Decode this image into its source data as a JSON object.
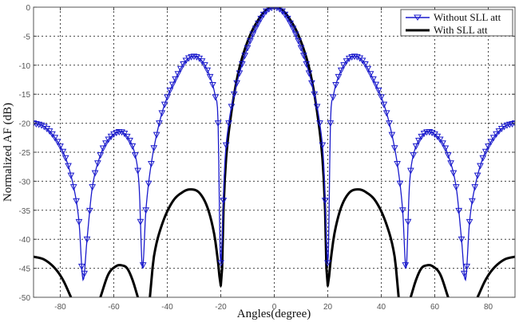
{
  "chart_data": {
    "type": "line",
    "title": "",
    "xlabel": "Angles(degree)",
    "ylabel": "Normalized AF (dB)",
    "xlim": [
      -90,
      90
    ],
    "ylim": [
      -50,
      0
    ],
    "xticks": [
      -80,
      -60,
      -40,
      -20,
      0,
      20,
      40,
      60,
      80
    ],
    "yticks": [
      0,
      -5,
      -10,
      -15,
      -20,
      -25,
      -30,
      -35,
      -40,
      -45,
      -50
    ],
    "grid": true,
    "legend_position": "upper right",
    "series": [
      {
        "name": "Without SLL att",
        "color": "#1a1acc",
        "marker": "triangle-down",
        "keypoints": [
          [
            -90,
            -20
          ],
          [
            -86,
            -20.6
          ],
          [
            -82,
            -22.5
          ],
          [
            -78,
            -26
          ],
          [
            -75,
            -31
          ],
          [
            -73,
            -37
          ],
          [
            -71.5,
            -47
          ],
          [
            -70,
            -40
          ],
          [
            -68,
            -31
          ],
          [
            -65,
            -25.5
          ],
          [
            -62,
            -22.8
          ],
          [
            -58,
            -21.5
          ],
          [
            -55,
            -22.3
          ],
          [
            -52,
            -25.5
          ],
          [
            -50.5,
            -31
          ],
          [
            -49.3,
            -45
          ],
          [
            -48,
            -35
          ],
          [
            -46,
            -27
          ],
          [
            -43,
            -20
          ],
          [
            -40,
            -15.5
          ],
          [
            -36,
            -11.5
          ],
          [
            -33,
            -9.2
          ],
          [
            -30,
            -8.5
          ],
          [
            -27,
            -9.3
          ],
          [
            -24,
            -12
          ],
          [
            -22,
            -15.5
          ],
          [
            -21,
            -20
          ],
          [
            -20.2,
            -43
          ],
          [
            -19.5,
            -40
          ],
          [
            -18.5,
            -27
          ],
          [
            -17,
            -20
          ],
          [
            -15,
            -15
          ],
          [
            -12,
            -9.8
          ],
          [
            -9,
            -5.8
          ],
          [
            -6,
            -2.8
          ],
          [
            -3,
            -0.7
          ],
          [
            0,
            0
          ],
          [
            3,
            -0.7
          ],
          [
            6,
            -2.8
          ],
          [
            9,
            -5.8
          ],
          [
            12,
            -9.8
          ],
          [
            15,
            -15
          ],
          [
            17,
            -20
          ],
          [
            18.5,
            -27
          ],
          [
            19.5,
            -40
          ],
          [
            20.2,
            -43
          ],
          [
            21,
            -20
          ],
          [
            22,
            -15.5
          ],
          [
            24,
            -12
          ],
          [
            27,
            -9.3
          ],
          [
            30,
            -8.5
          ],
          [
            33,
            -9.2
          ],
          [
            36,
            -11.5
          ],
          [
            40,
            -15.5
          ],
          [
            43,
            -20
          ],
          [
            46,
            -27
          ],
          [
            48,
            -35
          ],
          [
            49.3,
            -45
          ],
          [
            50.5,
            -31
          ],
          [
            52,
            -25.5
          ],
          [
            55,
            -22.3
          ],
          [
            58,
            -21.5
          ],
          [
            62,
            -22.8
          ],
          [
            65,
            -25.5
          ],
          [
            68,
            -31
          ],
          [
            70,
            -40
          ],
          [
            71.5,
            -47
          ],
          [
            73,
            -37
          ],
          [
            75,
            -31
          ],
          [
            78,
            -26
          ],
          [
            82,
            -22.5
          ],
          [
            86,
            -20.6
          ],
          [
            90,
            -20
          ]
        ]
      },
      {
        "name": "With SLL att",
        "color": "#000000",
        "marker": "none",
        "keypoints": [
          [
            -90,
            -43
          ],
          [
            -86,
            -43.5
          ],
          [
            -82,
            -45
          ],
          [
            -79,
            -47
          ],
          [
            -76,
            -50
          ],
          [
            -65,
            -50
          ],
          [
            -62,
            -46
          ],
          [
            -59,
            -44.6
          ],
          [
            -57,
            -44.5
          ],
          [
            -55,
            -45
          ],
          [
            -53,
            -47
          ],
          [
            -51,
            -50
          ],
          [
            -46.5,
            -50
          ],
          [
            -45,
            -43
          ],
          [
            -42,
            -37.5
          ],
          [
            -38,
            -33.5
          ],
          [
            -34,
            -31.8
          ],
          [
            -31,
            -31.4
          ],
          [
            -28,
            -32
          ],
          [
            -25,
            -34.5
          ],
          [
            -22.5,
            -39
          ],
          [
            -21,
            -44
          ],
          [
            -20,
            -48
          ],
          [
            -19.5,
            -45
          ],
          [
            -19,
            -35
          ],
          [
            -18,
            -26
          ],
          [
            -16,
            -18
          ],
          [
            -14,
            -12.5
          ],
          [
            -12,
            -8.7
          ],
          [
            -9,
            -4.8
          ],
          [
            -6,
            -2.2
          ],
          [
            -3,
            -0.5
          ],
          [
            0,
            0
          ],
          [
            3,
            -0.5
          ],
          [
            6,
            -2.2
          ],
          [
            9,
            -4.8
          ],
          [
            12,
            -8.7
          ],
          [
            14,
            -12.5
          ],
          [
            16,
            -18
          ],
          [
            18,
            -26
          ],
          [
            19,
            -35
          ],
          [
            19.5,
            -45
          ],
          [
            20,
            -48
          ],
          [
            21,
            -44
          ],
          [
            22.5,
            -39
          ],
          [
            25,
            -34.5
          ],
          [
            28,
            -32
          ],
          [
            31,
            -31.4
          ],
          [
            34,
            -31.8
          ],
          [
            38,
            -33.5
          ],
          [
            42,
            -37.5
          ],
          [
            45,
            -43
          ],
          [
            46.5,
            -50
          ],
          [
            51,
            -50
          ],
          [
            53,
            -47
          ],
          [
            55,
            -45
          ],
          [
            57,
            -44.5
          ],
          [
            59,
            -44.6
          ],
          [
            62,
            -46
          ],
          [
            65,
            -50
          ],
          [
            76,
            -50
          ],
          [
            79,
            -47
          ],
          [
            82,
            -45
          ],
          [
            86,
            -43.5
          ],
          [
            90,
            -43
          ]
        ],
        "breaks_at_floor": true
      }
    ]
  }
}
